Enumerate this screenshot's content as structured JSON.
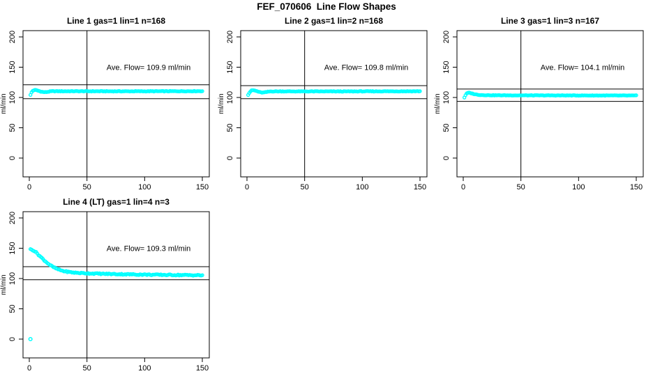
{
  "figure": {
    "title": "FEF_070606  Line Flow Shapes"
  },
  "colors": {
    "series": "#00FFFF",
    "axis": "#000000",
    "background": "#FFFFFF"
  },
  "chart_data": [
    {
      "type": "scatter",
      "title": "Line 1 gas=1 lin=1 n=168",
      "annotation": "Ave. Flow=  109.9  ml/min",
      "ave_flow": 109.9,
      "n": 168,
      "xlabel": "",
      "ylabel": "ml/min",
      "xlim": [
        0,
        155
      ],
      "ylim": [
        0,
        210
      ],
      "xticks": [
        0,
        50,
        100,
        150
      ],
      "yticks": [
        0,
        50,
        100,
        150,
        200
      ],
      "vline_x": 50,
      "hlines": [
        121,
        98
      ],
      "marker": "open-circle",
      "jitter": 0.45,
      "anchors": [
        [
          1,
          104
        ],
        [
          2,
          108.5
        ],
        [
          3,
          111
        ],
        [
          4,
          112
        ],
        [
          5,
          112.3
        ],
        [
          6,
          112
        ],
        [
          8,
          111
        ],
        [
          10,
          109.8
        ],
        [
          12,
          109
        ],
        [
          14,
          108.8
        ],
        [
          16,
          109.3
        ],
        [
          18,
          110
        ],
        [
          20,
          110.3
        ],
        [
          30,
          110.3
        ],
        [
          50,
          110.3
        ],
        [
          80,
          110.2
        ],
        [
          120,
          110.3
        ],
        [
          150,
          110.5
        ]
      ],
      "outliers": []
    },
    {
      "type": "scatter",
      "title": "Line 2 gas=1 lin=2 n=168",
      "annotation": "Ave. Flow=  109.8  ml/min",
      "ave_flow": 109.8,
      "n": 168,
      "xlabel": "",
      "ylabel": "ml/min",
      "xlim": [
        0,
        155
      ],
      "ylim": [
        0,
        210
      ],
      "xticks": [
        0,
        50,
        100,
        150
      ],
      "yticks": [
        0,
        50,
        100,
        150,
        200
      ],
      "vline_x": 50,
      "hlines": [
        119.5,
        98
      ],
      "marker": "open-circle",
      "jitter": 0.45,
      "anchors": [
        [
          1,
          104.5
        ],
        [
          2,
          107.5
        ],
        [
          3,
          110
        ],
        [
          4,
          111.5
        ],
        [
          5,
          112
        ],
        [
          6,
          111.8
        ],
        [
          8,
          110.8
        ],
        [
          10,
          109.5
        ],
        [
          12,
          108.4
        ],
        [
          14,
          108.1
        ],
        [
          16,
          108.7
        ],
        [
          18,
          109.4
        ],
        [
          20,
          110
        ],
        [
          30,
          110.1
        ],
        [
          50,
          110
        ],
        [
          80,
          110
        ],
        [
          120,
          110.2
        ],
        [
          150,
          110.3
        ]
      ],
      "outliers": []
    },
    {
      "type": "scatter",
      "title": "Line 3 gas=1 lin=3 n=167",
      "annotation": "Ave. Flow=  104.1  ml/min",
      "ave_flow": 104.1,
      "n": 167,
      "xlabel": "",
      "ylabel": "ml/min",
      "xlim": [
        0,
        155
      ],
      "ylim": [
        0,
        210
      ],
      "xticks": [
        0,
        50,
        100,
        150
      ],
      "yticks": [
        0,
        50,
        100,
        150,
        200
      ],
      "vline_x": 50,
      "hlines": [
        114,
        93.5
      ],
      "marker": "open-circle",
      "jitter": 0.4,
      "anchors": [
        [
          1,
          100
        ],
        [
          2,
          104
        ],
        [
          3,
          106.5
        ],
        [
          4,
          107.6
        ],
        [
          5,
          107.8
        ],
        [
          6,
          107.4
        ],
        [
          8,
          106.4
        ],
        [
          10,
          105.4
        ],
        [
          12,
          104.7
        ],
        [
          15,
          104.1
        ],
        [
          20,
          103.8
        ],
        [
          30,
          103.6
        ],
        [
          50,
          103.5
        ],
        [
          80,
          103.4
        ],
        [
          120,
          103.3
        ],
        [
          150,
          103.2
        ]
      ],
      "outliers": []
    },
    {
      "type": "scatter",
      "title": "Line 4 (LT) gas=1 lin=4 n=3",
      "annotation": "Ave. Flow=  109.3  ml/min",
      "ave_flow": 109.3,
      "n": 3,
      "xlabel": "",
      "ylabel": "ml/min",
      "xlim": [
        0,
        155
      ],
      "ylim": [
        0,
        210
      ],
      "xticks": [
        0,
        50,
        100,
        150
      ],
      "yticks": [
        0,
        50,
        100,
        150,
        200
      ],
      "vline_x": 50,
      "hlines": [
        119.5,
        98
      ],
      "marker": "open-circle",
      "jitter": 0.9,
      "anchors": [
        [
          1,
          148
        ],
        [
          2,
          147.6
        ],
        [
          3,
          147
        ],
        [
          4,
          146
        ],
        [
          5,
          144.6
        ],
        [
          6,
          143
        ],
        [
          7,
          141.2
        ],
        [
          8,
          139.2
        ],
        [
          9,
          137.3
        ],
        [
          10,
          135.5
        ],
        [
          12,
          131.8
        ],
        [
          14,
          128.4
        ],
        [
          16,
          125.2
        ],
        [
          18,
          122.3
        ],
        [
          20,
          119.7
        ],
        [
          22,
          117.6
        ],
        [
          24,
          115.9
        ],
        [
          26,
          114.4
        ],
        [
          28,
          113.2
        ],
        [
          30,
          112.2
        ],
        [
          35,
          110.6
        ],
        [
          40,
          109.6
        ],
        [
          45,
          109
        ],
        [
          50,
          108.6
        ],
        [
          60,
          108
        ],
        [
          70,
          107.5
        ],
        [
          80,
          107.1
        ],
        [
          90,
          106.8
        ],
        [
          100,
          106.5
        ],
        [
          110,
          106.2
        ],
        [
          120,
          106
        ],
        [
          130,
          105.8
        ],
        [
          140,
          105.6
        ],
        [
          150,
          105.3
        ]
      ],
      "outliers": [
        [
          1,
          0
        ]
      ]
    }
  ]
}
